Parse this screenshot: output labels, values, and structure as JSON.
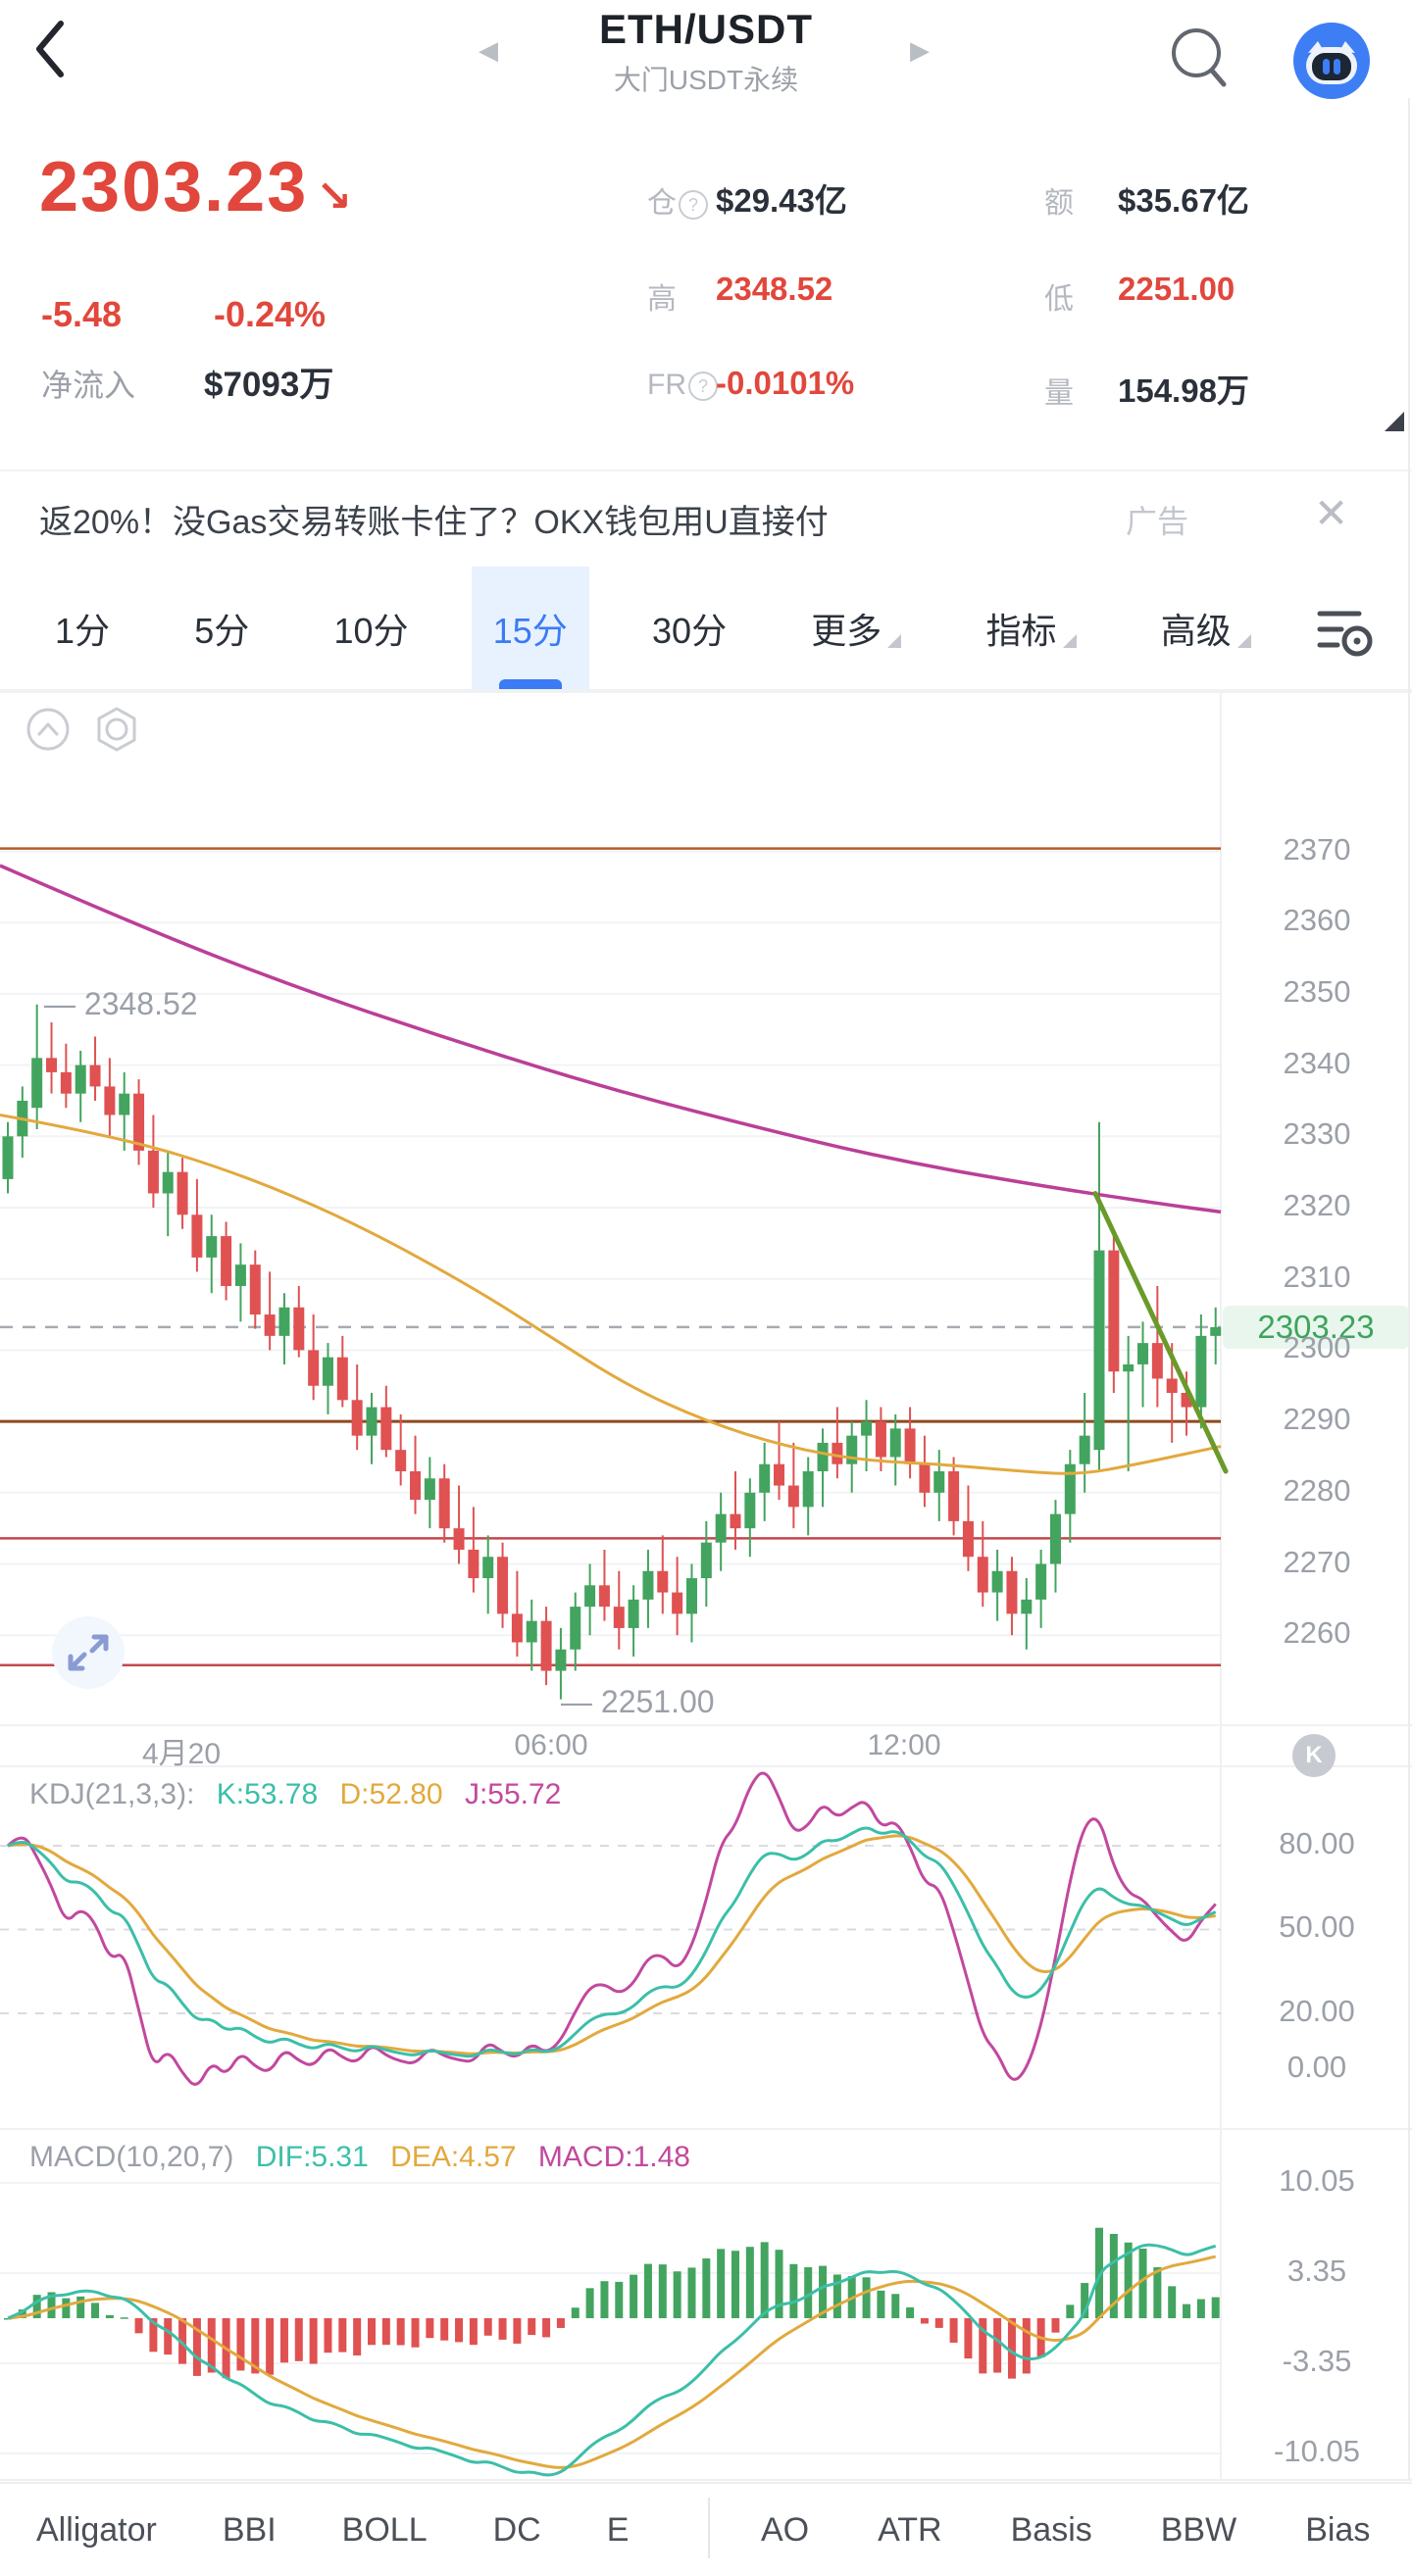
{
  "header": {
    "title": "ETH/USDT",
    "subtitle": "大门USDT永续",
    "back_glyph": "‹",
    "prev_arrow": "◀",
    "next_arrow": "▶"
  },
  "price_panel": {
    "last_price": "2303.23",
    "direction_arrow": "↘",
    "change": "-5.48",
    "change_percent": "-0.24%",
    "net_inflow_label": "净流入",
    "net_inflow_value": "$7093万",
    "stats": [
      {
        "label": "仓",
        "help": true,
        "value": "$29.43亿",
        "red": false
      },
      {
        "label": "额",
        "help": false,
        "value": "$35.67亿",
        "red": false
      },
      {
        "label": "高",
        "help": false,
        "value": "2348.52",
        "red": true
      },
      {
        "label": "低",
        "help": false,
        "value": "2251.00",
        "red": true
      },
      {
        "label": "FR",
        "help": true,
        "value": "-0.0101%",
        "red": true
      },
      {
        "label": "量",
        "help": false,
        "value": "154.98万",
        "red": false
      }
    ]
  },
  "ad_banner": {
    "text": "返20%！没Gas交易转账卡住了？OKX钱包用U直接付",
    "tag": "广告",
    "close_glyph": "✕"
  },
  "timeframe_bar": {
    "tabs": [
      {
        "label": "1分"
      },
      {
        "label": "5分"
      },
      {
        "label": "10分"
      },
      {
        "label": "15分",
        "active": true
      },
      {
        "label": "30分"
      },
      {
        "label": "更多",
        "dropdown": true
      },
      {
        "label": "指标",
        "dropdown": true
      },
      {
        "label": "高级",
        "dropdown": true
      }
    ]
  },
  "main_chart": {
    "price_axis_labels": [
      "2370",
      "2360",
      "2350",
      "2340",
      "2330",
      "2320",
      "2310",
      "2300",
      "2290",
      "2280",
      "2270",
      "2260"
    ],
    "time_axis_labels": [
      {
        "text": "4月20",
        "x": 185
      },
      {
        "text": "06:00",
        "x": 562
      },
      {
        "text": "12:00",
        "x": 922
      }
    ],
    "high_marker": "— 2348.52",
    "low_marker": "— 2251.00",
    "current_price_label": "2303.23"
  },
  "kdj_panel": {
    "title": "KDJ(21,3,3):",
    "k": "K:53.78",
    "d": "D:52.80",
    "j": "J:55.72",
    "axis_labels": [
      "80.00",
      "50.00",
      "20.00",
      "0.00"
    ],
    "k_badge": "K"
  },
  "macd_panel": {
    "title": "MACD(10,20,7)",
    "dif": "DIF:5.31",
    "dea": "DEA:4.57",
    "macd": "MACD:1.48",
    "axis_labels": [
      "10.05",
      "3.35",
      "-3.35",
      "-10.05"
    ]
  },
  "bottom_bar": {
    "left_tabs": [
      "Alligator",
      "BBI",
      "BOLL",
      "DC",
      "E"
    ],
    "right_tabs": [
      "AO",
      "ATR",
      "Basis",
      "BBW",
      "Bias"
    ]
  },
  "colors": {
    "up": "#43a45f",
    "down": "#e05152",
    "up_badge_bg": "#e9f6ee",
    "accent_blue": "#3b7bf6",
    "price_red": "#e1473c",
    "ma_fast": "#e2a93d",
    "ma_slow": "#bb3f98",
    "k_line": "#3bbfa9",
    "d_line": "#e2a93d",
    "j_line": "#c2489e",
    "trendline": "#6a9a2a",
    "hline_top": "#b55a2a",
    "hline_brown": "#8f4a1f",
    "hline_red": "#c2484e",
    "grid": "#f2f3f5",
    "dashed_cur": "#a7abb2"
  },
  "chart_data": {
    "type": "candlestick",
    "interval": "15m",
    "title": "ETH/USDT 大门USDT永续 15分",
    "y_ticks": [
      2370,
      2360,
      2350,
      2340,
      2330,
      2320,
      2310,
      2300,
      2290,
      2280,
      2270,
      2260
    ],
    "high": 2348.52,
    "low": 2251.0,
    "current_price": 2303.23,
    "candles": [
      [
        2324,
        2332,
        2322,
        2330
      ],
      [
        2330,
        2337,
        2327,
        2335
      ],
      [
        2334,
        2348.5,
        2331,
        2341
      ],
      [
        2341,
        2346,
        2336,
        2339
      ],
      [
        2339,
        2343,
        2334,
        2336
      ],
      [
        2336,
        2342,
        2332,
        2340
      ],
      [
        2340,
        2344,
        2335,
        2337
      ],
      [
        2337,
        2341,
        2330,
        2333
      ],
      [
        2333,
        2339,
        2328,
        2336
      ],
      [
        2336,
        2338,
        2326,
        2328
      ],
      [
        2328,
        2333,
        2320,
        2322
      ],
      [
        2322,
        2328,
        2316,
        2325
      ],
      [
        2325,
        2327,
        2317,
        2319
      ],
      [
        2319,
        2324,
        2311,
        2313
      ],
      [
        2313,
        2319,
        2308,
        2316
      ],
      [
        2316,
        2318,
        2307,
        2309
      ],
      [
        2309,
        2315,
        2304,
        2312
      ],
      [
        2312,
        2314,
        2303,
        2305
      ],
      [
        2305,
        2311,
        2300,
        2302
      ],
      [
        2302,
        2308,
        2298,
        2306
      ],
      [
        2306,
        2309,
        2299,
        2300
      ],
      [
        2300,
        2305,
        2293,
        2295
      ],
      [
        2295,
        2301,
        2291,
        2299
      ],
      [
        2299,
        2302,
        2292,
        2293
      ],
      [
        2293,
        2298,
        2286,
        2288
      ],
      [
        2288,
        2294,
        2284,
        2292
      ],
      [
        2292,
        2295,
        2285,
        2286
      ],
      [
        2286,
        2291,
        2281,
        2283
      ],
      [
        2283,
        2288,
        2277,
        2279
      ],
      [
        2279,
        2285,
        2275,
        2282
      ],
      [
        2282,
        2284,
        2273,
        2275
      ],
      [
        2275,
        2281,
        2270,
        2272
      ],
      [
        2272,
        2278,
        2266,
        2268
      ],
      [
        2268,
        2274,
        2263,
        2271
      ],
      [
        2271,
        2273,
        2261,
        2263
      ],
      [
        2263,
        2269,
        2257,
        2259
      ],
      [
        2259,
        2265,
        2255,
        2262
      ],
      [
        2262,
        2264,
        2253,
        2255
      ],
      [
        2255,
        2261,
        2251,
        2258
      ],
      [
        2258,
        2266,
        2255,
        2264
      ],
      [
        2264,
        2270,
        2260,
        2267
      ],
      [
        2267,
        2272,
        2262,
        2264
      ],
      [
        2264,
        2269,
        2258,
        2261
      ],
      [
        2261,
        2267,
        2257,
        2265
      ],
      [
        2265,
        2272,
        2261,
        2269
      ],
      [
        2269,
        2274,
        2263,
        2266
      ],
      [
        2266,
        2271,
        2260,
        2263
      ],
      [
        2263,
        2270,
        2259,
        2268
      ],
      [
        2268,
        2276,
        2264,
        2273
      ],
      [
        2273,
        2280,
        2269,
        2277
      ],
      [
        2277,
        2283,
        2272,
        2275
      ],
      [
        2275,
        2282,
        2271,
        2280
      ],
      [
        2280,
        2287,
        2276,
        2284
      ],
      [
        2284,
        2290,
        2279,
        2281
      ],
      [
        2281,
        2287,
        2275,
        2278
      ],
      [
        2278,
        2285,
        2274,
        2283
      ],
      [
        2283,
        2289,
        2278,
        2287
      ],
      [
        2287,
        2292,
        2282,
        2284
      ],
      [
        2284,
        2290,
        2280,
        2288
      ],
      [
        2288,
        2293,
        2283,
        2290
      ],
      [
        2290,
        2292,
        2283,
        2285
      ],
      [
        2285,
        2291,
        2281,
        2289
      ],
      [
        2289,
        2292,
        2282,
        2284
      ],
      [
        2284,
        2288,
        2278,
        2280
      ],
      [
        2280,
        2286,
        2276,
        2283
      ],
      [
        2283,
        2285,
        2274,
        2276
      ],
      [
        2276,
        2281,
        2269,
        2271
      ],
      [
        2271,
        2276,
        2264,
        2266
      ],
      [
        2266,
        2272,
        2262,
        2269
      ],
      [
        2269,
        2271,
        2260,
        2263
      ],
      [
        2263,
        2268,
        2258,
        2265
      ],
      [
        2265,
        2272,
        2261,
        2270
      ],
      [
        2270,
        2279,
        2266,
        2277
      ],
      [
        2277,
        2286,
        2273,
        2284
      ],
      [
        2284,
        2294,
        2280,
        2288
      ],
      [
        2286,
        2332,
        2283,
        2314
      ],
      [
        2314,
        2317,
        2294,
        2297
      ],
      [
        2297,
        2302,
        2283,
        2298
      ],
      [
        2298,
        2304,
        2292,
        2301
      ],
      [
        2301,
        2309,
        2292,
        2296
      ],
      [
        2296,
        2301,
        2287,
        2294
      ],
      [
        2294,
        2297,
        2288,
        2292
      ],
      [
        2292,
        2305,
        2289,
        2302
      ],
      [
        2302,
        2306,
        2298,
        2303.23
      ]
    ],
    "overlays": {
      "ma_fast_points": [
        [
          0,
          2333
        ],
        [
          120,
          2330
        ],
        [
          240,
          2325
        ],
        [
          360,
          2318
        ],
        [
          480,
          2309
        ],
        [
          560,
          2302
        ],
        [
          640,
          2295
        ],
        [
          720,
          2290
        ],
        [
          800,
          2286.5
        ],
        [
          880,
          2284.5
        ],
        [
          960,
          2284
        ],
        [
          1040,
          2283
        ],
        [
          1100,
          2282.5
        ],
        [
          1160,
          2284
        ],
        [
          1245,
          2286.5
        ]
      ],
      "ma_slow_points": [
        [
          0,
          2368
        ],
        [
          150,
          2359
        ],
        [
          300,
          2351
        ],
        [
          450,
          2344
        ],
        [
          600,
          2337.5
        ],
        [
          750,
          2332
        ],
        [
          900,
          2327
        ],
        [
          1050,
          2323.3
        ],
        [
          1180,
          2320.6
        ],
        [
          1245,
          2319.4
        ]
      ],
      "trendline": {
        "x1": 1117,
        "price1": 2322,
        "x2": 1250,
        "price2": 2283
      },
      "horizontal_lines": [
        {
          "price": 2370.4,
          "color_key": "hline_top",
          "width": 2.5
        },
        {
          "price": 2290.0,
          "color_key": "hline_brown",
          "width": 3
        },
        {
          "price": 2273.6,
          "color_key": "hline_red",
          "width": 2.5
        },
        {
          "price": 2255.8,
          "color_key": "hline_red",
          "width": 2.5
        }
      ]
    },
    "indicators": {
      "kdj": {
        "n": 21,
        "m1": 3,
        "m2": 3,
        "k": 53.78,
        "d": 52.8,
        "j": 55.72,
        "grid_levels": [
          80,
          50,
          20
        ],
        "axis_values": [
          80,
          50,
          20,
          0
        ]
      },
      "macd": {
        "fast": 10,
        "slow": 20,
        "signal": 7,
        "dif": 5.31,
        "dea": 4.57,
        "macd": 1.48,
        "axis_values": [
          10.05,
          3.35,
          -3.35,
          -10.05
        ]
      }
    }
  }
}
